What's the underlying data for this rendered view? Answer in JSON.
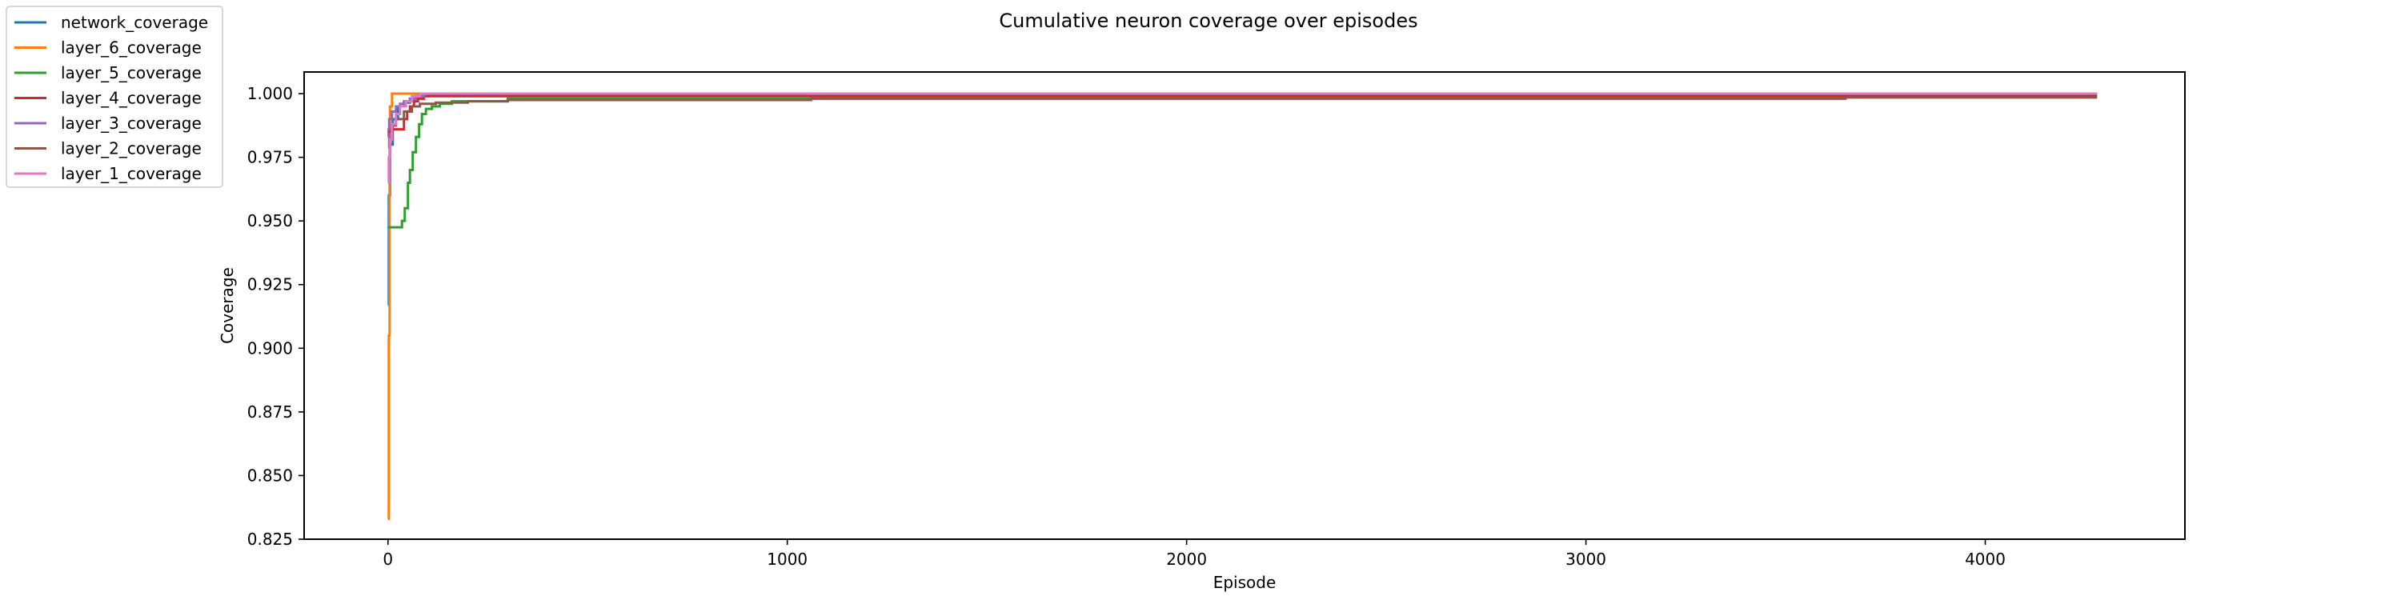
{
  "chart_data": {
    "type": "line",
    "title": "Cumulative neuron coverage over episodes",
    "xlabel": "Episode",
    "ylabel": "Coverage",
    "xlim": [
      -210,
      4500
    ],
    "ylim": [
      0.825,
      1.0085
    ],
    "xticks": [
      0,
      1000,
      2000,
      3000,
      4000
    ],
    "yticks": [
      0.825,
      0.85,
      0.875,
      0.9,
      0.925,
      0.95,
      0.975,
      1.0
    ],
    "ytick_labels": [
      "0.825",
      "0.850",
      "0.875",
      "0.900",
      "0.925",
      "0.950",
      "0.975",
      "1.000"
    ],
    "grid": false,
    "legend_position": "outside-top-left",
    "series": [
      {
        "name": "network_coverage",
        "color": "#1f77b4",
        "x": [
          0,
          2,
          5,
          12,
          25,
          40,
          55,
          70,
          100,
          4280
        ],
        "y": [
          0.917,
          0.96,
          0.98,
          0.99,
          0.995,
          0.9965,
          0.998,
          0.999,
          0.9995,
          0.9995
        ]
      },
      {
        "name": "layer_6_coverage",
        "color": "#ff7f0e",
        "x": [
          0,
          2,
          4,
          5,
          10,
          4280
        ],
        "y": [
          0.833,
          0.905,
          0.98,
          0.995,
          1.0,
          1.0
        ]
      },
      {
        "name": "layer_5_coverage",
        "color": "#2ca02c",
        "x": [
          0,
          30,
          35,
          42,
          50,
          55,
          62,
          70,
          78,
          85,
          95,
          110,
          130,
          160,
          300,
          1060,
          4280
        ],
        "y": [
          0.9475,
          0.9475,
          0.95,
          0.955,
          0.965,
          0.97,
          0.977,
          0.983,
          0.988,
          0.992,
          0.994,
          0.995,
          0.996,
          0.997,
          0.998,
          0.999,
          0.999
        ]
      },
      {
        "name": "layer_4_coverage",
        "color": "#d62728",
        "x": [
          0,
          2,
          10,
          30,
          40,
          48,
          55,
          65,
          75,
          90,
          110,
          4280
        ],
        "y": [
          0.983,
          0.986,
          0.986,
          0.986,
          0.99,
          0.993,
          0.995,
          0.997,
          0.998,
          0.999,
          0.999,
          0.999
        ]
      },
      {
        "name": "layer_3_coverage",
        "color": "#9467bd",
        "x": [
          0,
          3,
          10,
          20,
          30,
          40,
          55,
          70,
          90,
          4280
        ],
        "y": [
          0.979,
          0.99,
          0.993,
          0.995,
          0.996,
          0.997,
          0.998,
          0.999,
          1.0,
          1.0
        ]
      },
      {
        "name": "layer_2_coverage",
        "color": "#8c564b",
        "x": [
          0,
          10,
          20,
          40,
          60,
          80,
          120,
          200,
          300,
          1060,
          3650,
          4280
        ],
        "y": [
          0.985,
          0.9875,
          0.99,
          0.993,
          0.995,
          0.996,
          0.9965,
          0.997,
          0.9975,
          0.998,
          0.9985,
          0.9985
        ]
      },
      {
        "name": "layer_1_coverage",
        "color": "#e377c2",
        "x": [
          0,
          2,
          5,
          10,
          20,
          30,
          45,
          60,
          80,
          4280
        ],
        "y": [
          0.965,
          0.975,
          0.982,
          0.988,
          0.992,
          0.995,
          0.997,
          0.999,
          1.0,
          1.0
        ]
      }
    ]
  }
}
